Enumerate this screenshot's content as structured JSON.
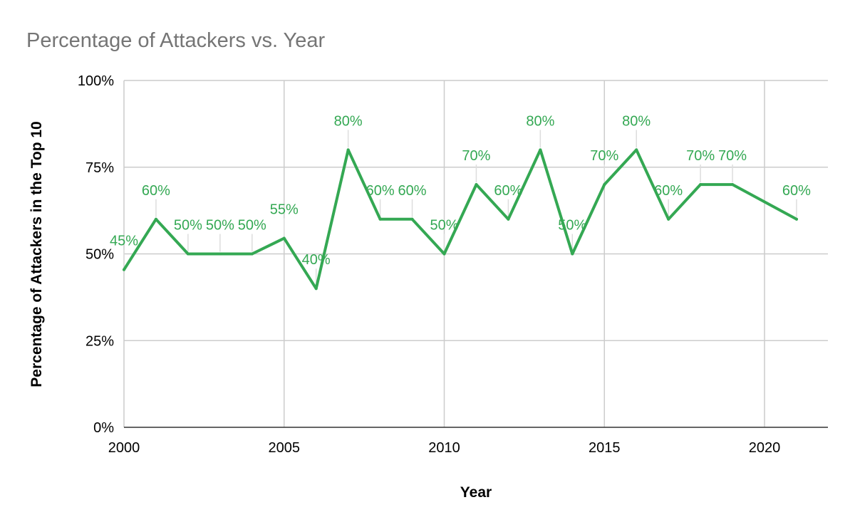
{
  "colors": {
    "series": "#34a853",
    "grid": "#cccccc",
    "axis": "#333333",
    "title": "#757575",
    "leader": "#dddddd"
  },
  "chart_data": {
    "type": "line",
    "title": "Percentage of Attackers vs. Year",
    "xlabel": "Year",
    "ylabel": "Percentage of Attackers in the Top 10",
    "xlim": [
      2000,
      2022
    ],
    "ylim": [
      0,
      100
    ],
    "x_ticks": [
      2000,
      2005,
      2010,
      2015,
      2020
    ],
    "x_tick_labels": [
      "2000",
      "2005",
      "2010",
      "2015",
      "2020"
    ],
    "y_ticks": [
      0,
      25,
      50,
      75,
      100
    ],
    "y_tick_labels": [
      "0%",
      "25%",
      "50%",
      "75%",
      "100%"
    ],
    "grid": true,
    "legend": "none",
    "x": [
      2000,
      2001,
      2002,
      2003,
      2004,
      2005,
      2006,
      2007,
      2008,
      2009,
      2010,
      2011,
      2012,
      2013,
      2014,
      2015,
      2016,
      2017,
      2018,
      2019,
      2021
    ],
    "values": [
      45.45,
      60,
      50,
      50,
      50,
      54.5,
      40,
      80,
      60,
      60,
      50,
      70,
      60,
      80,
      50,
      70,
      80,
      60,
      70,
      70,
      60
    ],
    "data_labels": [
      "45%",
      "60%",
      "50%",
      "50%",
      "50%",
      "55%",
      "40%",
      "80%",
      "60%",
      "60%",
      "50%",
      "70%",
      "60%",
      "80%",
      "50%",
      "70%",
      "80%",
      "60%",
      "70%",
      "70%",
      "60%"
    ]
  }
}
